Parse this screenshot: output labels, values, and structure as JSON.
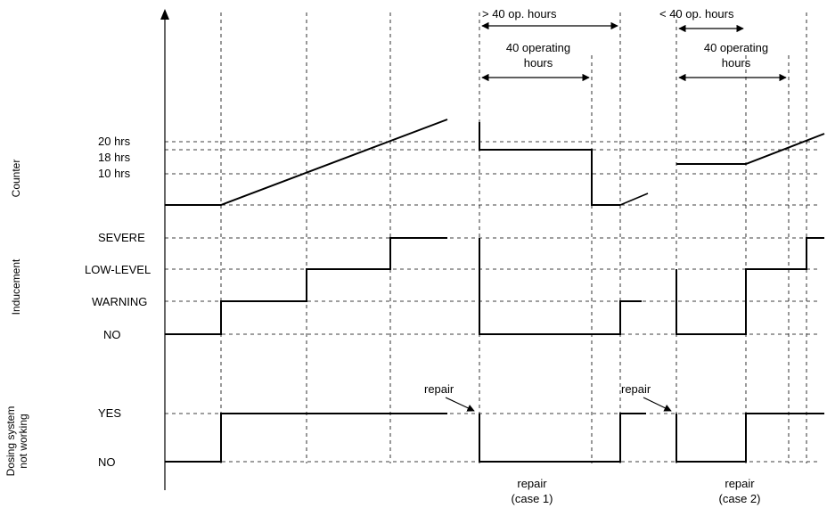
{
  "colors": {
    "line": "#000000",
    "background": "#ffffff"
  },
  "row_titles": {
    "counter": "Counter",
    "inducement": "Inducement",
    "dosing_line1": "Dosing system",
    "dosing_line2": "not working"
  },
  "counter_levels": {
    "hrs20": "20 hrs",
    "hrs18": "18 hrs",
    "hrs10": "10 hrs"
  },
  "inducement_levels": {
    "severe": "SEVERE",
    "low_level": "LOW-LEVEL",
    "warning": "WARNING",
    "no": "NO"
  },
  "dosing_levels": {
    "yes": "YES",
    "no": "NO"
  },
  "annotations": {
    "more_than_40": "> 40 op. hours",
    "less_than_40": "< 40 op. hours",
    "operating_1_line1": "40 operating",
    "operating_1_line2": "hours",
    "operating_2_line1": "40 operating",
    "operating_2_line2": "hours",
    "repair_1": "repair",
    "repair_2": "repair",
    "repair_case1_line1": "repair",
    "repair_case1_line2": "(case 1)",
    "repair_case2_line1": "repair",
    "repair_case2_line2": "(case 2)"
  }
}
